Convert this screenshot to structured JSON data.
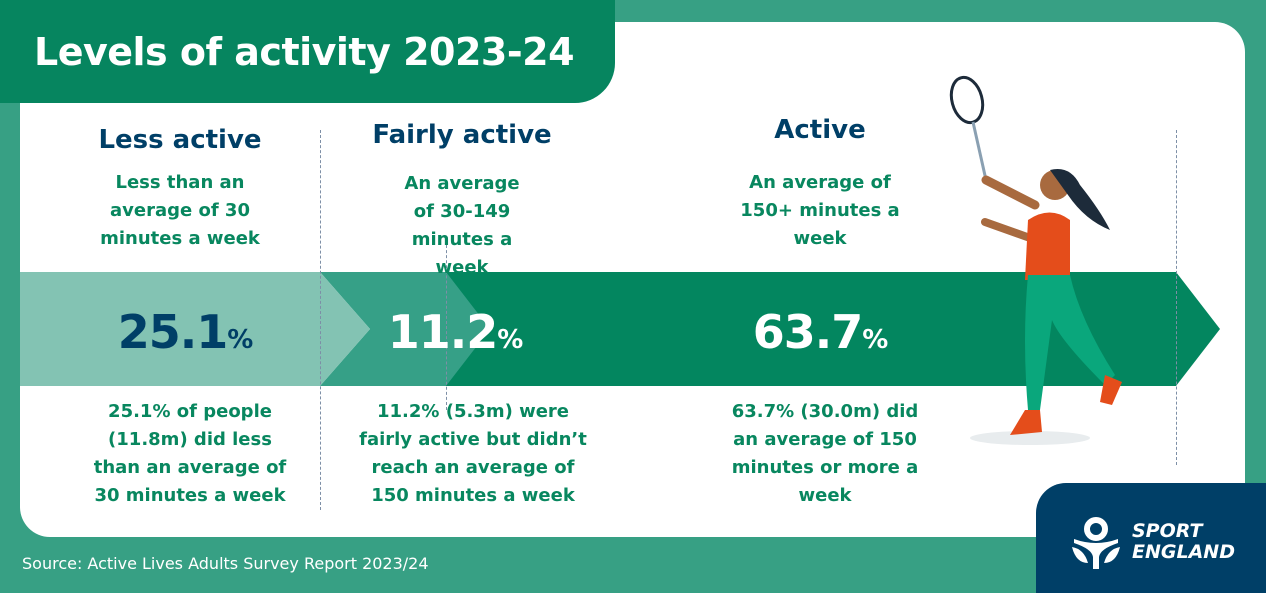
{
  "title": "Levels of activity 2023-24",
  "colors": {
    "background": "#37a084",
    "title_tab": "#06855f",
    "less_active": "#83c3b3",
    "fairly_active": "#36a087",
    "active": "#03865f",
    "navy": "#003f67",
    "green_text": "#08875f"
  },
  "levels": [
    {
      "heading": "Less active",
      "description": "Less than an average of 30 minutes a week",
      "value": "25.1",
      "unit": "%",
      "detail": "25.1% of people (11.8m) did less than an average of 30 minutes a week"
    },
    {
      "heading": "Fairly active",
      "description": "An average of 30-149 minutes a week",
      "value": "11.2",
      "unit": "%",
      "detail": "11.2% (5.3m) were fairly active but didn’t reach an average of 150 minutes a week"
    },
    {
      "heading": "Active",
      "description": "An average of 150+ minutes a week",
      "value": "63.7",
      "unit": "%",
      "detail": "63.7% (30.0m) did an average of 150 minutes or more a week"
    }
  ],
  "source": "Source: Active Lives Adults Survey Report 2023/24",
  "logo": {
    "line1": "SPORT",
    "line2": "ENGLAND"
  },
  "illustration": "badminton-player"
}
